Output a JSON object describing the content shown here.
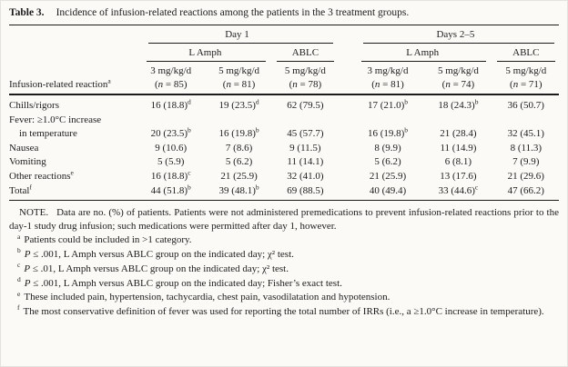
{
  "title": {
    "label": "Table 3.",
    "text": "Incidence of infusion-related reactions among the patients in the 3 treatment groups."
  },
  "table": {
    "corner_header": {
      "label": "Infusion-related reaction",
      "sup": "a"
    },
    "day_groups": [
      {
        "label": "Day 1"
      },
      {
        "label": "Days 2–5"
      }
    ],
    "drug_groups": [
      {
        "label": "L Amph"
      },
      {
        "label": "ABLC"
      },
      {
        "label": "L Amph"
      },
      {
        "label": "ABLC"
      }
    ],
    "dose_cols": [
      {
        "dose": "3 mg/kg/d",
        "np": "(",
        "ni": "n",
        "ns": " = 85)"
      },
      {
        "dose": "5 mg/kg/d",
        "np": "(",
        "ni": "n",
        "ns": " = 81)"
      },
      {
        "dose": "5 mg/kg/d",
        "np": "(",
        "ni": "n",
        "ns": " = 78)"
      },
      {
        "dose": "3 mg/kg/d",
        "np": "(",
        "ni": "n",
        "ns": " = 81)"
      },
      {
        "dose": "5 mg/kg/d",
        "np": "(",
        "ni": "n",
        "ns": " = 74)"
      },
      {
        "dose": "5 mg/kg/d",
        "np": "(",
        "ni": "n",
        "ns": " = 71)"
      }
    ],
    "rows": [
      {
        "label": "Chills/rigors",
        "sup": "",
        "label2": "",
        "cells": [
          {
            "v": "16 (18.8)",
            "s": "d"
          },
          {
            "v": "19 (23.5)",
            "s": "d"
          },
          {
            "v": "62 (79.5)",
            "s": ""
          },
          {
            "v": "17 (21.0)",
            "s": "b"
          },
          {
            "v": "18 (24.3)",
            "s": "b"
          },
          {
            "v": "36 (50.7)",
            "s": ""
          }
        ]
      },
      {
        "label": "Fever: ≥1.0°C increase",
        "sup": "",
        "label2": "in temperature",
        "cells": [
          {
            "v": "20 (23.5)",
            "s": "b"
          },
          {
            "v": "16 (19.8)",
            "s": "b"
          },
          {
            "v": "45 (57.7)",
            "s": ""
          },
          {
            "v": "16 (19.8)",
            "s": "b"
          },
          {
            "v": "21 (28.4)",
            "s": ""
          },
          {
            "v": "32 (45.1)",
            "s": ""
          }
        ]
      },
      {
        "label": "Nausea",
        "sup": "",
        "label2": "",
        "cells": [
          {
            "v": "9 (10.6)",
            "s": ""
          },
          {
            "v": "7 (8.6)",
            "s": ""
          },
          {
            "v": "9 (11.5)",
            "s": ""
          },
          {
            "v": "8 (9.9)",
            "s": ""
          },
          {
            "v": "11 (14.9)",
            "s": ""
          },
          {
            "v": "8 (11.3)",
            "s": ""
          }
        ]
      },
      {
        "label": "Vomiting",
        "sup": "",
        "label2": "",
        "cells": [
          {
            "v": "5 (5.9)",
            "s": ""
          },
          {
            "v": "5 (6.2)",
            "s": ""
          },
          {
            "v": "11 (14.1)",
            "s": ""
          },
          {
            "v": "5 (6.2)",
            "s": ""
          },
          {
            "v": "6 (8.1)",
            "s": ""
          },
          {
            "v": "7 (9.9)",
            "s": ""
          }
        ]
      },
      {
        "label": "Other reactions",
        "sup": "e",
        "label2": "",
        "cells": [
          {
            "v": "16 (18.8)",
            "s": "c"
          },
          {
            "v": "21 (25.9)",
            "s": ""
          },
          {
            "v": "32 (41.0)",
            "s": ""
          },
          {
            "v": "21 (25.9)",
            "s": ""
          },
          {
            "v": "13 (17.6)",
            "s": ""
          },
          {
            "v": "21 (29.6)",
            "s": ""
          }
        ]
      },
      {
        "label": "Total",
        "sup": "f",
        "label2": "",
        "cells": [
          {
            "v": "44 (51.8)",
            "s": "b"
          },
          {
            "v": "39 (48.1)",
            "s": "b"
          },
          {
            "v": "69 (88.5)",
            "s": ""
          },
          {
            "v": "40 (49.4)",
            "s": ""
          },
          {
            "v": "33 (44.6)",
            "s": "c"
          },
          {
            "v": "47 (66.2)",
            "s": ""
          }
        ]
      }
    ]
  },
  "note": {
    "label": "NOTE.",
    "text": "Data are no. (%) of patients. Patients were not administered premedications to prevent infusion-related reactions prior to the day-1 study drug infusion; such medications were permitted after day 1, however."
  },
  "footnotes": [
    {
      "marker": "a",
      "italic": "",
      "text": "Patients could be included in >1 category."
    },
    {
      "marker": "b",
      "italic": "P",
      "text": " ≤ .001, L Amph versus ABLC group on the indicated day; χ² test."
    },
    {
      "marker": "c",
      "italic": "P",
      "text": " ≤ .01, L Amph versus ABLC group on the indicated day; χ² test."
    },
    {
      "marker": "d",
      "italic": "P",
      "text": " ≤ .001, L Amph versus ABLC group on the indicated day; Fisher’s exact test."
    },
    {
      "marker": "e",
      "italic": "",
      "text": "These included pain, hypertension, tachycardia, chest pain, vasodilatation and hypotension."
    },
    {
      "marker": "f",
      "italic": "",
      "text": "The most conservative definition of fever was used for reporting the total number of IRRs (i.e., a ≥1.0°C increase in temperature)."
    }
  ],
  "colors": {
    "text": "#1c1c1c",
    "rule": "#1c1c1c",
    "background": "#fbfaf7"
  }
}
